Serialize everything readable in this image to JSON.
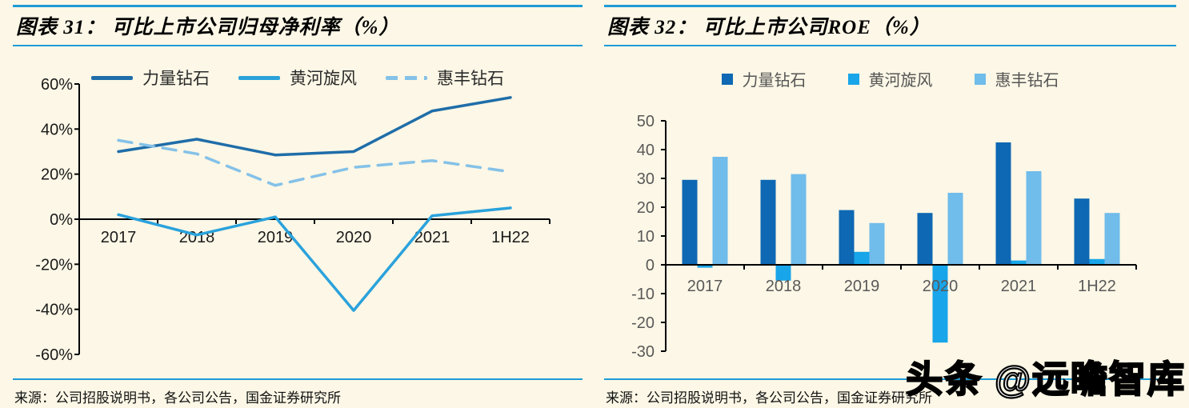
{
  "page": {
    "background_color": "#FCF7E6",
    "rule_color": "#1E9CD7",
    "watermark_text": "头条 @远瞻智库"
  },
  "left_panel": {
    "title": "图表 31： 可比上市公司归母净利率（%）",
    "source": "来源：公司招股说明书，各公司公告，国金证券研究所"
  },
  "right_panel": {
    "title": "图表 32： 可比上市公司ROE（%）",
    "source": "来源：公司招股说明书，各公司公告，国金证券研究所"
  },
  "chart_data": [
    {
      "type": "line",
      "title": "可比上市公司归母净利率（%）",
      "categories": [
        "2017",
        "2018",
        "2019",
        "2020",
        "2021",
        "1H22"
      ],
      "series": [
        {
          "name": "力量钻石",
          "style": "solid",
          "color": "#1F6DA9",
          "values": [
            30,
            35.5,
            28.5,
            30,
            48,
            54
          ]
        },
        {
          "name": "黄河旋风",
          "style": "solid",
          "color": "#2AA2DC",
          "values": [
            2,
            -7,
            1,
            -40.5,
            1.5,
            5
          ]
        },
        {
          "name": "惠丰钻石",
          "style": "dashed",
          "color": "#84C1E8",
          "values": [
            35,
            29,
            15,
            23,
            26,
            21
          ]
        }
      ],
      "xlabel": "",
      "ylabel": "",
      "ylim": [
        -60,
        60
      ],
      "ytick_step": 20,
      "ytick_suffix": "%",
      "legend_position": "top",
      "grid": false
    },
    {
      "type": "bar",
      "title": "可比上市公司ROE（%）",
      "categories": [
        "2017",
        "2018",
        "2019",
        "2020",
        "2021",
        "1H22"
      ],
      "series": [
        {
          "name": "力量钻石",
          "color": "#0E68B3",
          "values": [
            29.5,
            29.5,
            19,
            18,
            42.5,
            23
          ]
        },
        {
          "name": "黄河旋风",
          "color": "#18A5E9",
          "values": [
            -1,
            -5.5,
            4.5,
            -27,
            1.5,
            2
          ]
        },
        {
          "name": "惠丰钻石",
          "color": "#70BCEB",
          "values": [
            37.5,
            31.5,
            14.5,
            25,
            32.5,
            18
          ]
        }
      ],
      "xlabel": "",
      "ylabel": "",
      "ylim": [
        -30,
        50
      ],
      "ytick_step": 10,
      "ytick_suffix": "",
      "legend_position": "top",
      "grid": false
    }
  ]
}
